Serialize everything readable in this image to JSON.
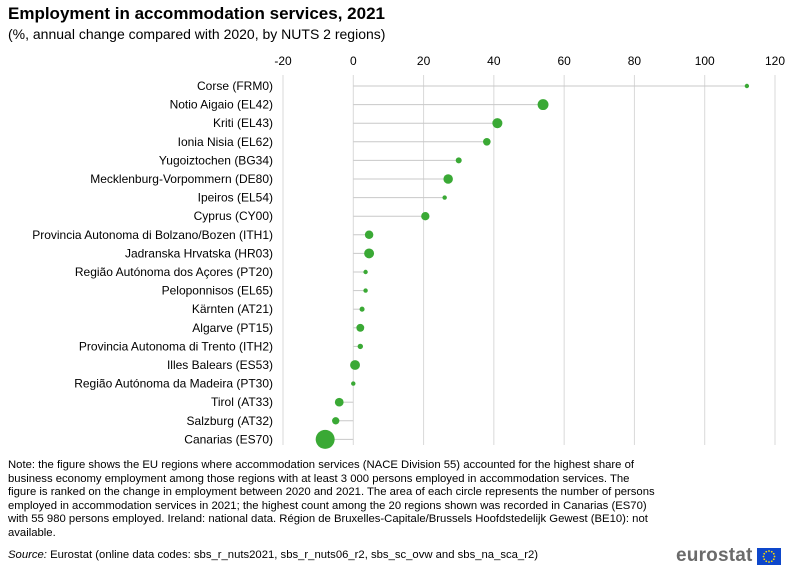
{
  "title": "Employment in accommodation services, 2021",
  "subtitle": "(%, annual change compared with 2020, by NUTS 2 regions)",
  "note": "Note: the figure shows the EU regions where accommodation services (NACE Division 55) accounted for the highest share of business economy employment among those regions with at least 3 000 persons employed in accommodation services. The figure is ranked on the change in employment between 2020 and 2021. The area of each circle represents the number of persons employed in accommodation services in 2021; the highest count among the 20 regions shown was recorded in Canarias (ES70) with 55 980 persons employed. Ireland: national data. Région de Bruxelles-Capitale/Brussels Hoofdstedelijk Gewest (BE10): not available.",
  "source_label": "Source:",
  "source_text": " Eurostat (online data codes: sbs_r_nuts2021, sbs_r_nuts06_r2, sbs_sc_ovw and sbs_na_sca_r2)",
  "logo_text": "eurostat",
  "colors": {
    "marker": "#3aa935",
    "grid": "#d9d9d9",
    "leader": "#c8c8c8",
    "flag": "#0e47cb",
    "star": "#ffdd00"
  },
  "chart_data": {
    "type": "scatter",
    "xlim": [
      -20,
      120
    ],
    "x_ticks": [
      "-20",
      "0",
      "20",
      "40",
      "60",
      "80",
      "100",
      "120"
    ],
    "x_tick_values": [
      -20,
      0,
      20,
      40,
      60,
      80,
      100,
      120
    ],
    "grid": true,
    "categories": [
      "Corse (FRM0)",
      "Notio Aigaio (EL42)",
      "Kriti (EL43)",
      "Ionia Nisia (EL62)",
      "Yugoiztochen (BG34)",
      "Mecklenburg-Vorpommern (DE80)",
      "Ipeiros (EL54)",
      "Cyprus (CY00)",
      "Provincia Autonoma di Bolzano/Bozen (ITH1)",
      "Jadranska Hrvatska (HR03)",
      "Região Autónoma dos Açores (PT20)",
      "Peloponnisos (EL65)",
      "Kärnten (AT21)",
      "Algarve (PT15)",
      "Provincia Autonoma di Trento (ITH2)",
      "Illes Balears (ES53)",
      "Região Autónoma da Madeira (PT30)",
      "Tirol (AT33)",
      "Salzburg (AT32)",
      "Canarias (ES70)"
    ],
    "values": [
      112,
      54,
      41,
      38,
      30,
      27,
      26,
      20.5,
      4.5,
      4.5,
      3.5,
      3.5,
      2.5,
      2,
      2,
      0.5,
      0,
      -4,
      -5,
      -8
    ],
    "bubble_size_persons_max": 55980,
    "relative_size": [
      0.05,
      0.33,
      0.28,
      0.16,
      0.1,
      0.25,
      0.03,
      0.19,
      0.2,
      0.27,
      0.04,
      0.04,
      0.07,
      0.17,
      0.08,
      0.27,
      0.04,
      0.21,
      0.15,
      1.0
    ]
  }
}
